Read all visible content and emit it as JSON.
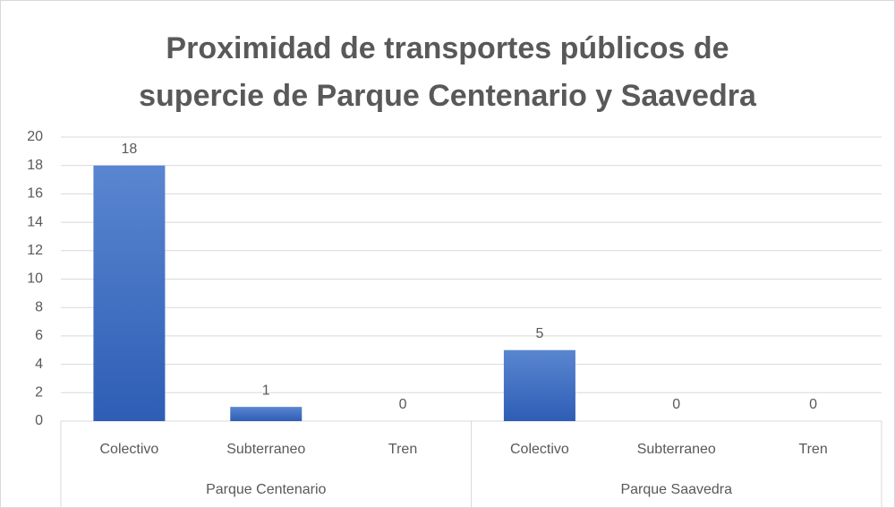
{
  "chart_data": {
    "type": "bar",
    "title": "Proximidad de transportes públicos de supercie de Parque Centenario y Saavedra",
    "categories": [
      "Colectivo",
      "Subterraneo",
      "Tren",
      "Colectivo",
      "Subterraneo",
      "Tren"
    ],
    "groups": [
      "Parque Centenario",
      "Parque Saavedra"
    ],
    "values": [
      18,
      1,
      0,
      5,
      0,
      0
    ],
    "color": "#4472c4",
    "ylim": [
      0,
      20
    ],
    "yticks": [
      0,
      2,
      4,
      6,
      8,
      10,
      12,
      14,
      16,
      18,
      20
    ],
    "grid": true
  }
}
